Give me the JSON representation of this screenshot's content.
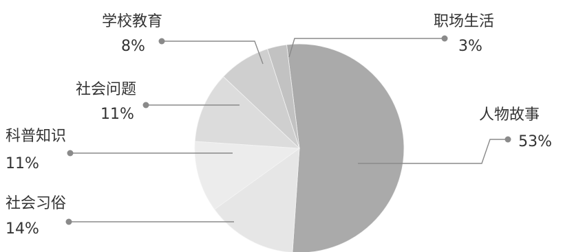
{
  "chart_data": {
    "type": "pie",
    "slices": [
      {
        "name": "人物故事",
        "value": 53,
        "value_label": "53%",
        "color": "#aaaaaa"
      },
      {
        "name": "社会习俗",
        "value": 14,
        "value_label": "14%",
        "color": "#e6e6e6"
      },
      {
        "name": "科普知识",
        "value": 11,
        "value_label": "11%",
        "color": "#ececec"
      },
      {
        "name": "社会问题",
        "value": 11,
        "value_label": "11%",
        "color": "#dcdcdc"
      },
      {
        "name": "学校教育",
        "value": 8,
        "value_label": "8%",
        "color": "#cfcfcf"
      },
      {
        "name": "职场生活",
        "value": 3,
        "value_label": "3%",
        "color": "#c2c2c2"
      }
    ],
    "start_angle_deg": -7,
    "direction": "clockwise",
    "legend": "none",
    "labels": "outside-with-leader-lines"
  }
}
